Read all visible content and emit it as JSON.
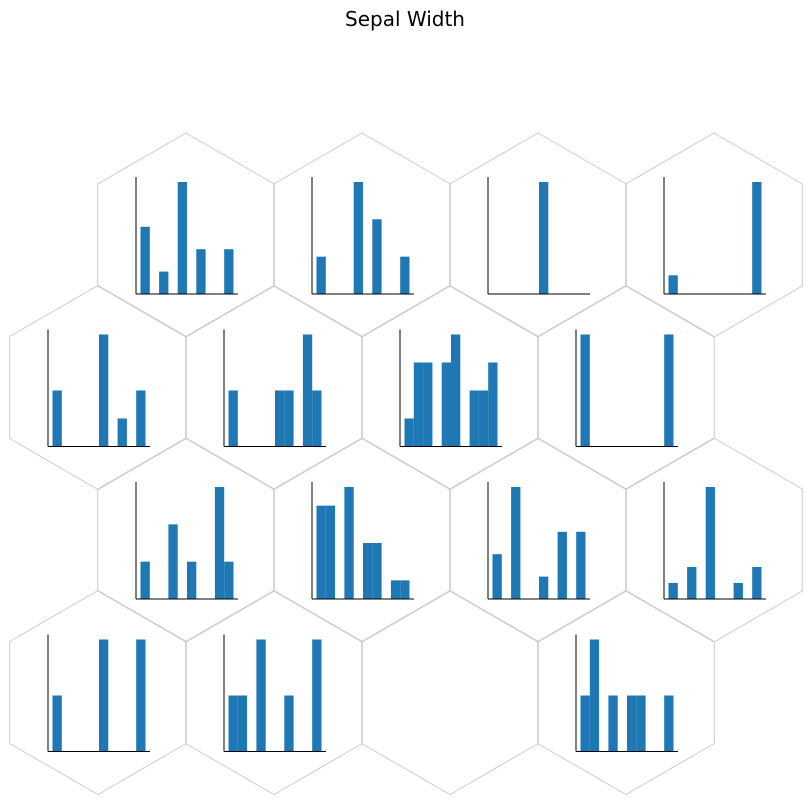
{
  "chart_data": {
    "type": "hex-histograms",
    "title": "Sepal Width",
    "color": "#1f77b4",
    "cells": [
      [
        {
          "values": [
            3,
            0,
            1,
            0,
            5,
            0,
            2,
            0,
            0,
            2
          ]
        },
        {
          "values": [
            1,
            0,
            0,
            0,
            3,
            0,
            2,
            0,
            0,
            1
          ]
        },
        {
          "values": [
            0,
            0,
            0,
            0,
            0,
            1,
            0,
            0,
            0,
            0
          ]
        },
        {
          "values": [
            1,
            0,
            0,
            0,
            0,
            0,
            0,
            0,
            0,
            6
          ]
        }
      ],
      [
        {
          "values": [
            2,
            0,
            0,
            0,
            0,
            4,
            0,
            1,
            0,
            2
          ]
        },
        {
          "values": [
            1,
            0,
            0,
            0,
            0,
            1,
            1,
            0,
            2,
            1
          ]
        },
        {
          "values": [
            1,
            3,
            3,
            0,
            3,
            4,
            0,
            2,
            2,
            3
          ]
        },
        {
          "values": [
            1,
            0,
            0,
            0,
            0,
            0,
            0,
            0,
            0,
            1
          ]
        }
      ],
      [
        {
          "values": [
            1,
            0,
            0,
            2,
            0,
            1,
            0,
            0,
            3,
            1
          ]
        },
        {
          "values": [
            5,
            5,
            0,
            6,
            0,
            3,
            3,
            0,
            1,
            1
          ]
        },
        {
          "values": [
            2,
            0,
            5,
            0,
            0,
            1,
            0,
            3,
            0,
            3
          ]
        },
        {
          "values": [
            1,
            0,
            2,
            0,
            7,
            0,
            0,
            1,
            0,
            2
          ]
        }
      ],
      [
        {
          "values": [
            1,
            0,
            0,
            0,
            0,
            2,
            0,
            0,
            0,
            2
          ]
        },
        {
          "values": [
            1,
            1,
            0,
            2,
            0,
            0,
            1,
            0,
            0,
            2
          ]
        },
        null,
        {
          "values": [
            1,
            2,
            0,
            1,
            0,
            1,
            1,
            0,
            0,
            1
          ]
        }
      ]
    ]
  }
}
